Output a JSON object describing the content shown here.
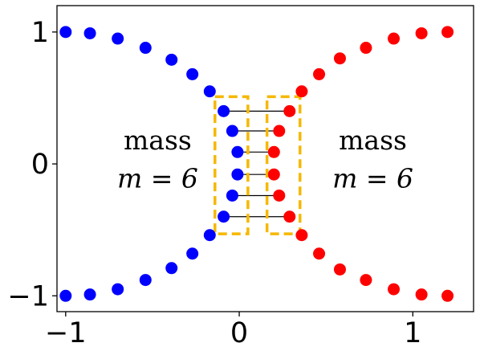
{
  "chart_data": {
    "type": "scatter",
    "xlim": [
      -1.05,
      1.35
    ],
    "ylim": [
      -1.12,
      1.2
    ],
    "grid": false,
    "xticks": [
      -1,
      0,
      1
    ],
    "xtick_labels": [
      "−1",
      "0",
      "1"
    ],
    "yticks": [
      -1,
      0,
      1
    ],
    "ytick_labels": [
      "−1",
      "0",
      "1"
    ],
    "colors": {
      "left": "#0000ff",
      "right": "#ff0000",
      "box": "#f5b800",
      "link": "#000000"
    },
    "series": [
      {
        "side": "left",
        "points": [
          [
            -1.0,
            1.0
          ],
          [
            -0.86,
            0.99
          ],
          [
            -0.7,
            0.95
          ],
          [
            -0.54,
            0.88
          ],
          [
            -0.39,
            0.79
          ],
          [
            -0.27,
            0.68
          ],
          [
            -0.17,
            0.55
          ],
          [
            -1.0,
            -1.0
          ],
          [
            -0.86,
            -0.99
          ],
          [
            -0.7,
            -0.95
          ],
          [
            -0.54,
            -0.88
          ],
          [
            -0.39,
            -0.79
          ],
          [
            -0.27,
            -0.68
          ],
          [
            -0.17,
            -0.54
          ]
        ]
      },
      {
        "side": "left-inner",
        "points": [
          [
            -0.09,
            0.4
          ],
          [
            -0.04,
            0.25
          ],
          [
            -0.01,
            0.09
          ],
          [
            -0.01,
            -0.08
          ],
          [
            -0.04,
            -0.24
          ],
          [
            -0.09,
            -0.4
          ]
        ]
      },
      {
        "side": "right",
        "points": [
          [
            1.2,
            1.0
          ],
          [
            1.05,
            0.99
          ],
          [
            0.89,
            0.95
          ],
          [
            0.73,
            0.88
          ],
          [
            0.58,
            0.8
          ],
          [
            0.46,
            0.68
          ],
          [
            0.36,
            0.55
          ],
          [
            1.2,
            -1.0
          ],
          [
            1.05,
            -0.99
          ],
          [
            0.89,
            -0.95
          ],
          [
            0.73,
            -0.88
          ],
          [
            0.58,
            -0.8
          ],
          [
            0.46,
            -0.68
          ],
          [
            0.36,
            -0.54
          ]
        ]
      },
      {
        "side": "right-inner",
        "points": [
          [
            0.29,
            0.4
          ],
          [
            0.23,
            0.25
          ],
          [
            0.2,
            0.09
          ],
          [
            0.2,
            -0.08
          ],
          [
            0.23,
            -0.24
          ],
          [
            0.29,
            -0.4
          ]
        ]
      }
    ],
    "links": [
      [
        [
          -0.09,
          0.4
        ],
        [
          0.29,
          0.4
        ]
      ],
      [
        [
          -0.04,
          0.25
        ],
        [
          0.23,
          0.25
        ]
      ],
      [
        [
          -0.01,
          0.09
        ],
        [
          0.2,
          0.09
        ]
      ],
      [
        [
          -0.01,
          -0.08
        ],
        [
          0.2,
          -0.08
        ]
      ],
      [
        [
          -0.04,
          -0.24
        ],
        [
          0.23,
          -0.24
        ]
      ],
      [
        [
          -0.09,
          -0.4
        ],
        [
          0.29,
          -0.4
        ]
      ]
    ],
    "boxes": [
      {
        "x0": -0.14,
        "x1": 0.05,
        "y0": -0.53,
        "y1": 0.51
      },
      {
        "x0": 0.16,
        "x1": 0.35,
        "y0": -0.53,
        "y1": 0.51
      }
    ],
    "annotations": {
      "left_word": "mass",
      "left_eq": "m = 6",
      "left_anchor": [
        -0.47,
        0.11,
        -0.47,
        -0.18
      ],
      "right_word": "mass",
      "right_eq": "m = 6",
      "right_anchor": [
        0.77,
        0.11,
        0.77,
        -0.18
      ]
    }
  }
}
